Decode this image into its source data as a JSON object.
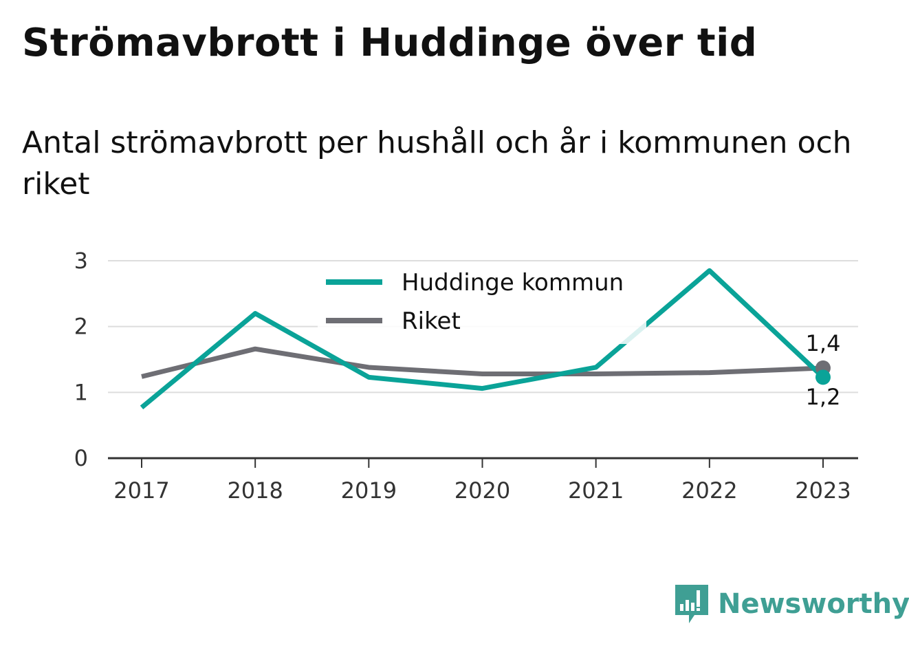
{
  "header": {
    "title": "Strömavbrott i Huddinge över tid",
    "subtitle": "Antal strömavbrott per hushåll och år i kommunen och riket"
  },
  "colors": {
    "huddinge": "#0aa398",
    "riket": "#6e6e74",
    "grid": "#dddddd",
    "axis": "#333333",
    "brand": "#3f9f94"
  },
  "chart_data": {
    "type": "line",
    "categories": [
      "2017",
      "2018",
      "2019",
      "2020",
      "2021",
      "2022",
      "2023"
    ],
    "ylim": [
      0,
      3
    ],
    "yticks": [
      "0",
      "1",
      "2",
      "3"
    ],
    "grid": true,
    "legend_position": "top-center",
    "series": [
      {
        "name": "Huddinge kommun",
        "values": [
          0.77,
          2.2,
          1.23,
          1.06,
          1.38,
          2.85,
          1.23
        ],
        "end_label": "1,2"
      },
      {
        "name": "Riket",
        "values": [
          1.24,
          1.66,
          1.38,
          1.28,
          1.28,
          1.3,
          1.37
        ],
        "end_label": "1,4"
      }
    ]
  },
  "branding": {
    "name": "Newsworthy",
    "icon": "newsworthy-logo-icon"
  }
}
